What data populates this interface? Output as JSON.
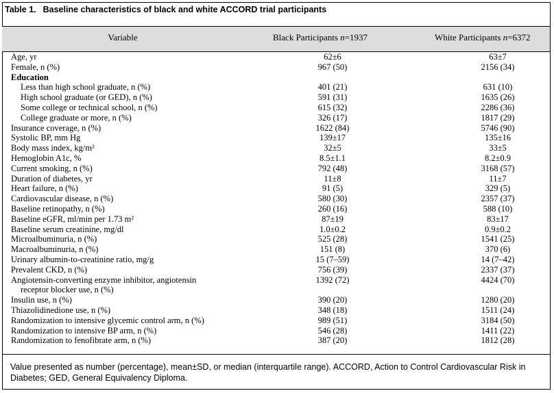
{
  "table": {
    "label": "Table 1.",
    "title": "Baseline characteristics of black and white ACCORD trial participants",
    "headers": {
      "variable": "Variable",
      "black_prefix": "Black Participants ",
      "black_n": "n",
      "black_suffix": "=1937",
      "white_prefix": "White Participants ",
      "white_n": "n",
      "white_suffix": "=6372"
    },
    "rows": [
      {
        "var": "Age, yr",
        "black": "62±6",
        "white": "63±7"
      },
      {
        "var": "Female, n (%)",
        "black": "967 (50)",
        "white": "2156 (34)"
      },
      {
        "var": "Education",
        "black": "",
        "white": "",
        "type": "section"
      },
      {
        "var": "Less than high school graduate, n (%)",
        "black": "401 (21)",
        "white": "631 (10)",
        "type": "indent"
      },
      {
        "var": "High school graduate (or GED), n (%)",
        "black": "591 (31)",
        "white": "1635 (26)",
        "type": "indent"
      },
      {
        "var": "Some college or technical school, n (%)",
        "black": "615 (32)",
        "white": "2286 (36)",
        "type": "indent"
      },
      {
        "var": "College graduate or more, n (%)",
        "black": "326 (17)",
        "white": "1817 (29)",
        "type": "indent"
      },
      {
        "var": "Insurance coverage, n (%)",
        "black": "1622 (84)",
        "white": "5746 (90)"
      },
      {
        "var": "Systolic BP, mm Hg",
        "black": "139±17",
        "white": "135±16"
      },
      {
        "var": "Body mass index, kg/m²",
        "black": "32±5",
        "white": "33±5"
      },
      {
        "var": "Hemoglobin A1c, %",
        "black": "8.5±1.1",
        "white": "8.2±0.9"
      },
      {
        "var": "Current smoking, n (%)",
        "black": "792 (48)",
        "white": "3168 (57)"
      },
      {
        "var": "Duration of diabetes, yr",
        "black": "11±8",
        "white": "11±7"
      },
      {
        "var": "Heart failure, n (%)",
        "black": "91 (5)",
        "white": "329 (5)"
      },
      {
        "var": "Cardiovascular disease, n (%)",
        "black": "580 (30)",
        "white": "2357 (37)"
      },
      {
        "var": "Baseline retinopathy, n (%)",
        "black": "260 (16)",
        "white": "588 (10)"
      },
      {
        "var": "Baseline eGFR, ml/min per 1.73 m²",
        "black": "87±19",
        "white": "83±17"
      },
      {
        "var": "Baseline serum creatinine, mg/dl",
        "black": "1.0±0.2",
        "white": "0.9±0.2"
      },
      {
        "var": "Microalbuminuria, n (%)",
        "black": "525 (28)",
        "white": "1541 (25)"
      },
      {
        "var": "Macroalbuminuria, n (%)",
        "black": "151 (8)",
        "white": "370 (6)"
      },
      {
        "var": "Urinary albumin-to-creatinine ratio, mg/g",
        "black": "15 (7–59)",
        "white": "14 (7–42)"
      },
      {
        "var": "Prevalent CKD, n (%)",
        "black": "756 (39)",
        "white": "2337 (37)"
      },
      {
        "var": "Angiotensin-converting enzyme inhibitor, angiotensin",
        "var2": "receptor blocker use, n (%)",
        "black": "1392 (72)",
        "white": "4424 (70)",
        "type": "tall"
      },
      {
        "var": "Insulin use, n (%)",
        "black": "390 (20)",
        "white": "1280 (20)"
      },
      {
        "var": "Thiazolidinedione use, n (%)",
        "black": "348 (18)",
        "white": "1511 (24)"
      },
      {
        "var": "Randomization to intensive glycemic control arm, n (%)",
        "black": "989 (51)",
        "white": "3184 (50)"
      },
      {
        "var": "Randomization to intensive BP arm, n (%)",
        "black": "546 (28)",
        "white": "1411 (22)"
      },
      {
        "var": "Randomization to fenofibrate arm, n (%)",
        "black": "387 (20)",
        "white": "1812 (28)"
      }
    ],
    "footnote": "Value presented as number (percentage), mean±SD, or median (interquartile range). ACCORD, Action to Control Cardiovascular Risk in Diabetes; GED, General Equivalency Diploma."
  }
}
